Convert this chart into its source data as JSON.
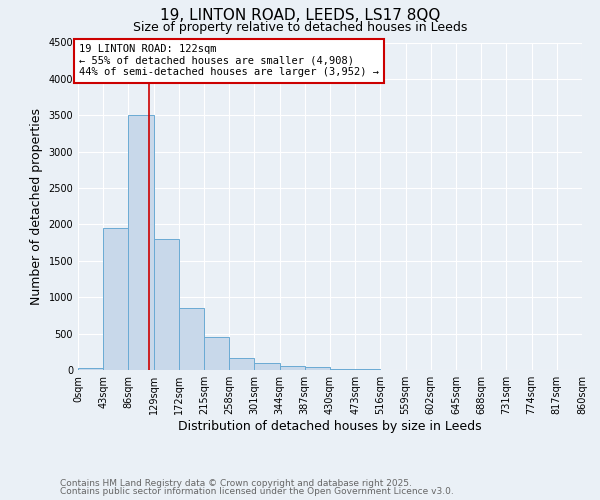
{
  "title": "19, LINTON ROAD, LEEDS, LS17 8QQ",
  "subtitle": "Size of property relative to detached houses in Leeds",
  "xlabel": "Distribution of detached houses by size in Leeds",
  "ylabel": "Number of detached properties",
  "footnote1": "Contains HM Land Registry data © Crown copyright and database right 2025.",
  "footnote2": "Contains public sector information licensed under the Open Government Licence v3.0.",
  "bin_edges": [
    0,
    43,
    86,
    129,
    172,
    215,
    258,
    301,
    344,
    387,
    430,
    473,
    516,
    559,
    602,
    645,
    688,
    731,
    774,
    817,
    860
  ],
  "bar_heights": [
    30,
    1950,
    3500,
    1800,
    850,
    450,
    160,
    90,
    55,
    40,
    20,
    15,
    5,
    3,
    2,
    1,
    1,
    0,
    0,
    0
  ],
  "bar_color": "#c8d8ea",
  "bar_edgecolor": "#6aaad4",
  "vline_x": 122,
  "vline_color": "#cc0000",
  "annotation_text": "19 LINTON ROAD: 122sqm\n← 55% of detached houses are smaller (4,908)\n44% of semi-detached houses are larger (3,952) →",
  "annotation_box_edgecolor": "#cc0000",
  "annotation_box_facecolor": "white",
  "ylim": [
    0,
    4500
  ],
  "yticks": [
    0,
    500,
    1000,
    1500,
    2000,
    2500,
    3000,
    3500,
    4000,
    4500
  ],
  "background_color": "#eaf0f6",
  "grid_color": "white",
  "title_fontsize": 11,
  "subtitle_fontsize": 9,
  "axis_label_fontsize": 9,
  "tick_fontsize": 7,
  "annotation_fontsize": 7.5,
  "footnote_fontsize": 6.5
}
